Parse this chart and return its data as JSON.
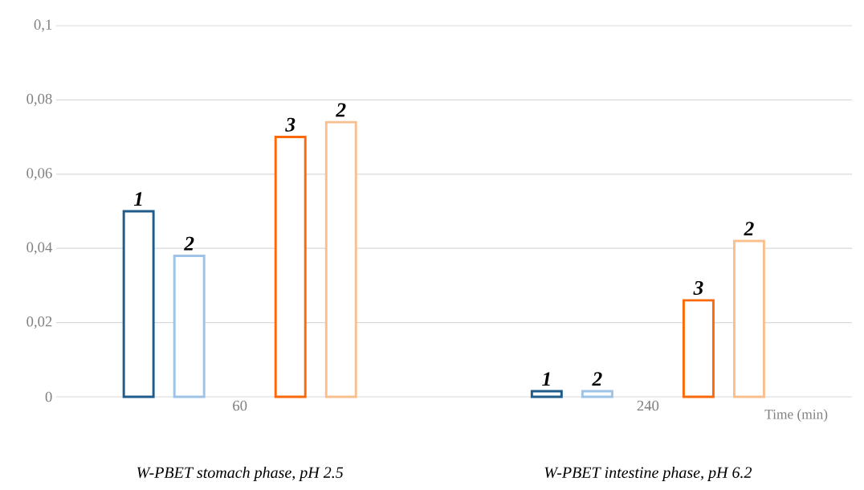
{
  "chart_data": {
    "type": "bar",
    "categories": [
      "60",
      "240"
    ],
    "xlabel": "Time (min)",
    "ylim": [
      0,
      0.1
    ],
    "yticks": [
      0,
      {
        "value": 0.02,
        "label": "0,02"
      },
      {
        "value": 0.04,
        "label": "0,04"
      },
      {
        "value": 0.06,
        "label": "0,06"
      },
      {
        "value": 0.08,
        "label": "0,08"
      },
      {
        "value": 0.1,
        "label": "0,1"
      }
    ],
    "grid": "y",
    "annotations": [
      "W-PBET stomach phase, pH 2.5",
      "W-PBET intestine phase, pH 6.2"
    ],
    "series": [
      {
        "name": "1",
        "color": "#1f5c8b",
        "values": [
          0.05,
          0.0015
        ]
      },
      {
        "name": "2",
        "color": "#9dc3e6",
        "values": [
          0.038,
          0.0015
        ]
      },
      {
        "values": [
          null,
          null
        ]
      },
      {
        "name": "3",
        "color": "#fb6a0a",
        "values": [
          0.07,
          0.026
        ]
      },
      {
        "name": "2",
        "color": "#f9c08f",
        "values": [
          0.074,
          0.042
        ]
      }
    ]
  }
}
